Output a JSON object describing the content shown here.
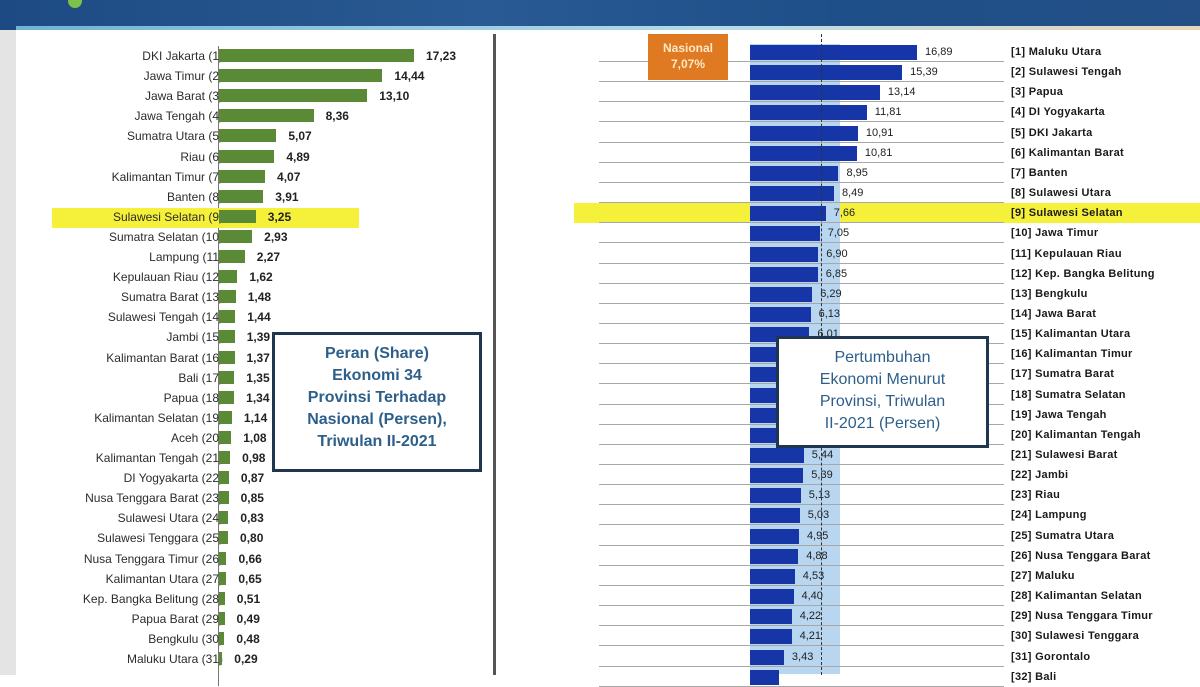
{
  "colors": {
    "left_bar": "#5a8a35",
    "right_bar": "#1636a8",
    "highlight": "#f5f03a",
    "nasional_badge": "#e07a22",
    "box_text": "#2d5f8a"
  },
  "left_chart": {
    "title_lines": [
      "Peran (Share)",
      "Ekonomi 34",
      "Provinsi Terhadap",
      "Nasional (Persen),",
      "Triwulan II-2021"
    ],
    "highlighted": "Sulawesi Selatan (9)"
  },
  "right_chart": {
    "title_lines": [
      "Pertumbuhan",
      "Ekonomi Menurut",
      "Provinsi, Triwulan",
      "II-2021 (Persen)"
    ],
    "nasional_label": "Nasional",
    "nasional_value": "7,07%",
    "highlighted": "[9] Sulawesi Selatan"
  },
  "chart_data": [
    {
      "type": "bar",
      "orientation": "horizontal",
      "title": "Peran (Share) Ekonomi 34 Provinsi Terhadap Nasional (Persen), Triwulan II-2021",
      "categories": [
        "DKI Jakarta (1)",
        "Jawa Timur (2)",
        "Jawa Barat (3)",
        "Jawa Tengah (4)",
        "Sumatra Utara (5)",
        "Riau (6)",
        "Kalimantan Timur (7)",
        "Banten (8)",
        "Sulawesi Selatan (9)",
        "Sumatra Selatan (10)",
        "Lampung (11)",
        "Kepulauan Riau (12)",
        "Sumatra Barat (13)",
        "Sulawesi Tengah (14)",
        "Jambi (15)",
        "Kalimantan Barat (16)",
        "Bali (17)",
        "Papua (18)",
        "Kalimantan Selatan (19)",
        "Aceh (20)",
        "Kalimantan Tengah (21)",
        "DI Yogyakarta (22)",
        "Nusa Tenggara Barat (23)",
        "Sulawesi Utara (24)",
        "Sulawesi Tenggara (25)",
        "Nusa Tenggara Timur (26)",
        "Kalimantan Utara (27)",
        "Kep. Bangka Belitung (28)",
        "Papua Barat (29)",
        "Bengkulu (30)",
        "Maluku Utara (31)"
      ],
      "values": [
        17.23,
        14.44,
        13.1,
        8.36,
        5.07,
        4.89,
        4.07,
        3.91,
        3.25,
        2.93,
        2.27,
        1.62,
        1.48,
        1.44,
        1.39,
        1.37,
        1.35,
        1.34,
        1.14,
        1.08,
        0.98,
        0.87,
        0.85,
        0.83,
        0.8,
        0.66,
        0.65,
        0.51,
        0.49,
        0.48,
        0.29
      ],
      "labels": [
        "17,23",
        "14,44",
        "13,10",
        "8,36",
        "5,07",
        "4,89",
        "4,07",
        "3,91",
        "3,25",
        "2,93",
        "2,27",
        "1,62",
        "1,48",
        "1,44",
        "1,39",
        "1,37",
        "1,35",
        "1,34",
        "1,14",
        "1,08",
        "0,98",
        "0,87",
        "0,85",
        "0,83",
        "0,80",
        "0,66",
        "0,65",
        "0,51",
        "0,49",
        "0,48",
        "0,29"
      ],
      "xlabel": "",
      "ylabel": "",
      "grid": false
    },
    {
      "type": "bar",
      "orientation": "horizontal",
      "title": "Pertumbuhan Ekonomi Menurut Provinsi, Triwulan II-2021 (Persen)",
      "reference_line": {
        "label": "Nasional",
        "value": 7.07
      },
      "categories": [
        "[1] Maluku Utara",
        "[2] Sulawesi Tengah",
        "[3] Papua",
        "[4] DI Yogyakarta",
        "[5] DKI Jakarta",
        "[6] Kalimantan Barat",
        "[7] Banten",
        "[8] Sulawesi Utara",
        "[9] Sulawesi Selatan",
        "[10] Jawa Timur",
        "[11] Kepulauan Riau",
        "[12] Kep. Bangka Belitung",
        "[13] Bengkulu",
        "[14] Jawa Barat",
        "[15] Kalimantan Utara",
        "[16] Kalimantan Timur",
        "[17] Sumatra Barat",
        "[18] Sumatra Selatan",
        "[19] Jawa Tengah",
        "[20] Kalimantan Tengah",
        "[21] Sulawesi Barat",
        "[22] Jambi",
        "[23] Riau",
        "[24] Lampung",
        "[25] Sumatra Utara",
        "[26] Nusa Tenggara Barat",
        "[27] Maluku",
        "[28] Kalimantan Selatan",
        "[29] Nusa Tenggara Timur",
        "[30] Sulawesi Tenggara",
        "[31] Gorontalo",
        "[32] Bali"
      ],
      "values": [
        16.89,
        15.39,
        13.14,
        11.81,
        10.91,
        10.81,
        8.95,
        8.49,
        7.66,
        7.05,
        6.9,
        6.85,
        6.29,
        6.13,
        6.01,
        5.9,
        5.8,
        5.7,
        5.66,
        5.5,
        5.44,
        5.39,
        5.13,
        5.03,
        4.95,
        4.88,
        4.53,
        4.4,
        4.22,
        4.21,
        3.43,
        2.9
      ],
      "labels": [
        "16,89",
        "15,39",
        "13,14",
        "11,81",
        "10,91",
        "10,81",
        "8,95",
        "8,49",
        "7,66",
        "7,05",
        "6,90",
        "6,85",
        "6,29",
        "6,13",
        "6,01",
        "",
        "",
        "",
        "",
        "",
        "5,44",
        "5,39",
        "5,13",
        "5,03",
        "4,95",
        "4,88",
        "4,53",
        "4,40",
        "4,22",
        "4,21",
        "3,43",
        ""
      ],
      "xlabel": "",
      "ylabel": "",
      "grid": true
    }
  ]
}
